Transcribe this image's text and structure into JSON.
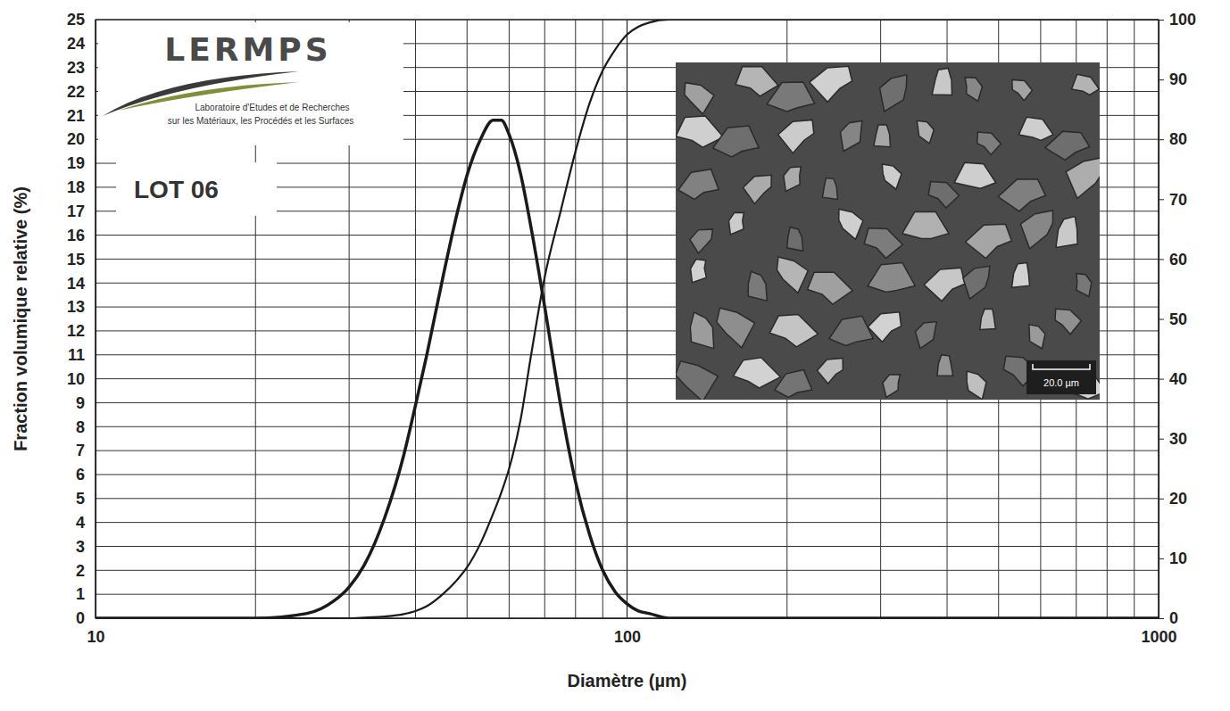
{
  "chart_data": {
    "type": "line",
    "x_label": "Diamètre (µm)",
    "y_label": "Fraction volumique relative (%)",
    "annotations": [
      "LERMPS",
      "Laboratoire d'Etudes et de Recherches",
      "sur les Matériaux, les Procédés et les Surfaces",
      "LOT 06",
      "20.0 µm"
    ],
    "x": [
      10,
      20,
      25,
      28,
      30,
      32,
      35,
      38,
      40,
      42,
      45,
      48,
      50,
      53,
      56,
      58,
      60,
      63,
      66,
      70,
      75,
      80,
      85,
      90,
      95,
      100,
      105,
      110,
      120,
      150,
      1000
    ],
    "series": [
      {
        "color": "#1a1a1a",
        "values": [
          0,
          0,
          0.2,
          0.7,
          1.3,
          2.2,
          4.2,
          6.8,
          8.9,
          11.0,
          14.2,
          17.0,
          18.5,
          20.0,
          20.8,
          20.8,
          20.2,
          18.6,
          16.3,
          13.0,
          8.9,
          5.7,
          3.5,
          2.0,
          1.1,
          0.6,
          0.3,
          0.2,
          0,
          0,
          0
        ]
      },
      {
        "color": "#1a1a1a",
        "axis": "y2",
        "values": [
          0,
          0,
          0,
          0,
          0,
          0.1,
          0.3,
          0.7,
          1.2,
          2,
          4,
          6.5,
          8.5,
          12.5,
          17.5,
          21,
          25,
          33,
          44,
          57,
          68,
          78,
          86,
          91.5,
          95,
          97.5,
          98.8,
          99.5,
          100,
          100,
          100
        ]
      }
    ],
    "xlim": [
      10,
      1000
    ],
    "xticks": [
      10,
      100,
      1000
    ],
    "ylim": [
      0,
      25
    ],
    "yticks": [
      0,
      1,
      2,
      3,
      4,
      5,
      6,
      7,
      8,
      9,
      10,
      11,
      12,
      13,
      14,
      15,
      16,
      17,
      18,
      19,
      20,
      21,
      22,
      23,
      24,
      25
    ],
    "y2lim": [
      0,
      100
    ],
    "y2ticks": [
      0,
      10,
      20,
      30,
      40,
      50,
      60,
      70,
      80,
      90,
      100
    ],
    "log": "x",
    "grid": true
  }
}
